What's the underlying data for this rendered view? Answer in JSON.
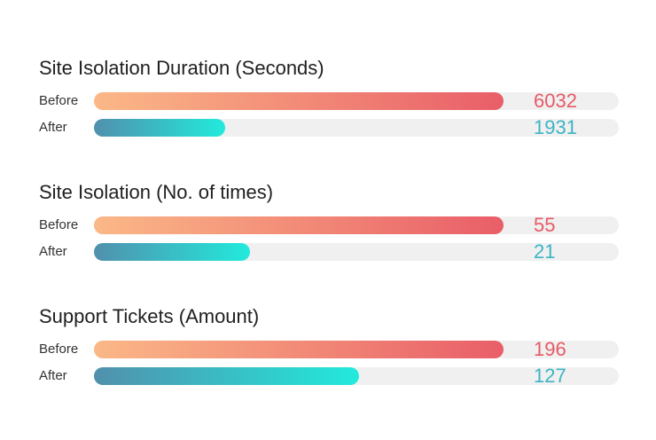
{
  "chart_data": [
    {
      "type": "bar",
      "title": "Site Isolation Duration (Seconds)",
      "categories": [
        "Before",
        "After"
      ],
      "values": [
        6032,
        1931
      ],
      "value_labels": [
        "6032",
        "1931"
      ]
    },
    {
      "type": "bar",
      "title": "Site Isolation (No. of times)",
      "categories": [
        "Before",
        "After"
      ],
      "values": [
        55,
        21
      ],
      "value_labels": [
        "55",
        "21"
      ]
    },
    {
      "type": "bar",
      "title": "Support Tickets (Amount)",
      "categories": [
        "Before",
        "After"
      ],
      "values": [
        196,
        127
      ],
      "value_labels": [
        "196",
        "127"
      ]
    }
  ],
  "colors": {
    "before_start": "#fbb887",
    "before_end": "#e95e68",
    "after_start": "#5190ad",
    "after_end": "#22eadc",
    "track": "#f0f0f0"
  }
}
